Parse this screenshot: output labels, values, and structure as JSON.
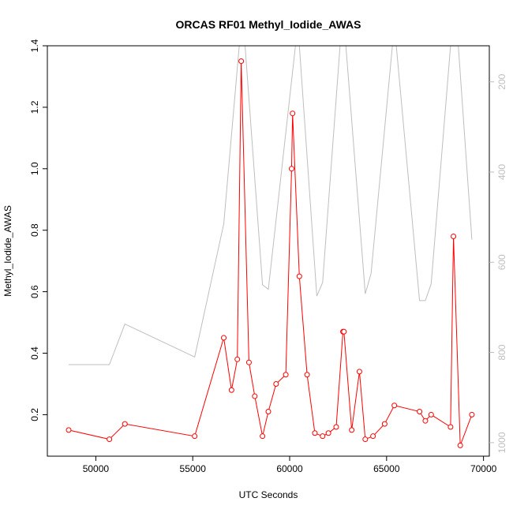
{
  "chart_data": {
    "type": "line",
    "title": "ORCAS RF01 Methyl_Iodide_AWAS",
    "xlabel": "UTC Seconds",
    "ylabel": "Methyl_Iodide_AWAS",
    "xlim": [
      47500,
      70300
    ],
    "ylim": [
      0.065,
      1.4
    ],
    "y2lim": [
      1030,
      120
    ],
    "grid": false,
    "x_ticks": [
      50000,
      55000,
      60000,
      65000,
      70000
    ],
    "y_ticks": [
      0.2,
      0.4,
      0.6,
      0.8,
      1.0,
      1.2,
      1.4
    ],
    "y2_ticks": [
      200,
      400,
      600,
      800,
      1000
    ],
    "colors": {
      "primary": "#ff0000",
      "secondary": "#bebebe",
      "axis": "#000000"
    },
    "series": [
      {
        "axis": "left",
        "marker": "open-circle",
        "points": [
          [
            48600,
            0.15
          ],
          [
            50700,
            0.12
          ],
          [
            51500,
            0.17
          ],
          [
            55100,
            0.13
          ],
          [
            56600,
            0.45
          ],
          [
            57000,
            0.28
          ],
          [
            57300,
            0.38
          ],
          [
            57500,
            1.35
          ],
          [
            57900,
            0.37
          ],
          [
            58200,
            0.26
          ],
          [
            58600,
            0.13
          ],
          [
            58900,
            0.21
          ],
          [
            59300,
            0.3
          ],
          [
            59800,
            0.33
          ],
          [
            60100,
            1.0
          ],
          [
            60150,
            1.18
          ],
          [
            60500,
            0.65
          ],
          [
            60900,
            0.33
          ],
          [
            61300,
            0.14
          ],
          [
            61700,
            0.13
          ],
          [
            62000,
            0.14
          ],
          [
            62400,
            0.16
          ],
          [
            62750,
            0.47
          ],
          [
            62800,
            0.47
          ],
          [
            63200,
            0.15
          ],
          [
            63600,
            0.34
          ],
          [
            63900,
            0.12
          ],
          [
            64300,
            0.13
          ],
          [
            64900,
            0.17
          ],
          [
            65400,
            0.23
          ],
          [
            66700,
            0.21
          ],
          [
            67000,
            0.18
          ],
          [
            67300,
            0.2
          ],
          [
            68300,
            0.16
          ],
          [
            68450,
            0.78
          ],
          [
            68800,
            0.1
          ],
          [
            69400,
            0.2
          ]
        ]
      },
      {
        "axis": "right",
        "marker": "none",
        "points": [
          [
            48600,
            827
          ],
          [
            50700,
            827
          ],
          [
            51500,
            737
          ],
          [
            55100,
            810
          ],
          [
            56600,
            515
          ],
          [
            57400,
            120
          ],
          [
            57700,
            120
          ],
          [
            58600,
            650
          ],
          [
            58900,
            660
          ],
          [
            60300,
            120
          ],
          [
            60500,
            120
          ],
          [
            61400,
            675
          ],
          [
            61700,
            645
          ],
          [
            62600,
            120
          ],
          [
            62900,
            120
          ],
          [
            63900,
            670
          ],
          [
            64200,
            625
          ],
          [
            65300,
            120
          ],
          [
            65500,
            120
          ],
          [
            66700,
            685
          ],
          [
            67000,
            685
          ],
          [
            67300,
            648
          ],
          [
            68300,
            120
          ],
          [
            68700,
            120
          ],
          [
            69400,
            550
          ]
        ]
      }
    ]
  }
}
